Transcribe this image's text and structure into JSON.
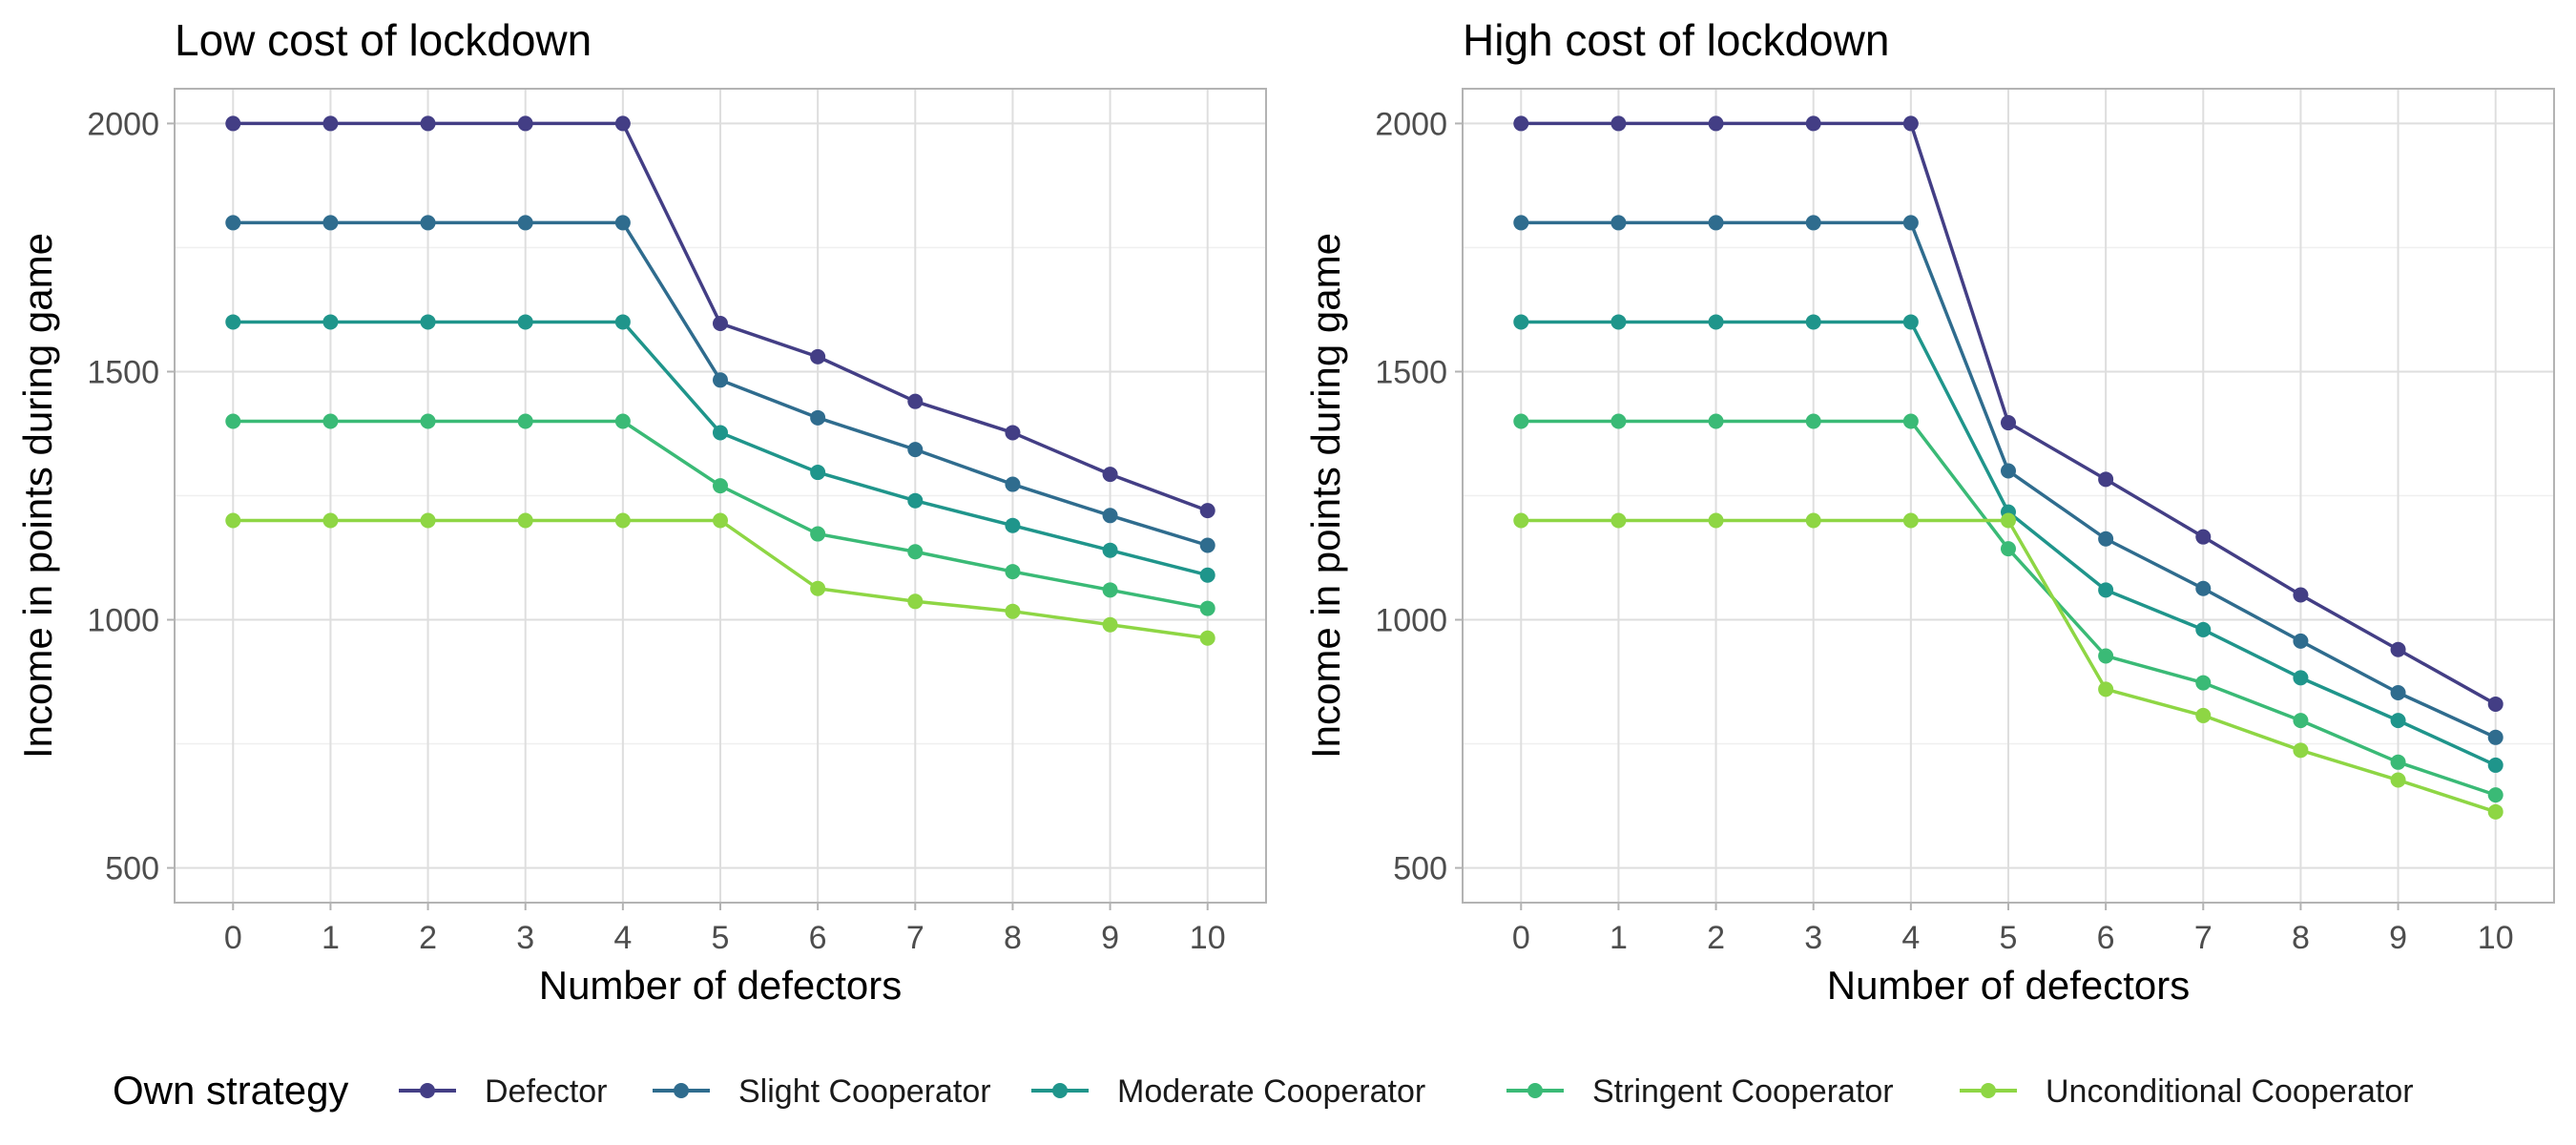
{
  "chart_data": [
    {
      "type": "line",
      "title": "Low cost of lockdown",
      "xlabel": "Number of defectors",
      "ylabel": "Income in points during game",
      "x": [
        0,
        1,
        2,
        3,
        4,
        5,
        6,
        7,
        8,
        9,
        10
      ],
      "xlim": [
        -0.6,
        10.6
      ],
      "ylim": [
        430,
        2070
      ],
      "x_ticks": [
        "0",
        "1",
        "2",
        "3",
        "4",
        "5",
        "6",
        "7",
        "8",
        "9",
        "10"
      ],
      "y_ticks": [
        "500",
        "1000",
        "1500",
        "2000"
      ],
      "grid": true,
      "legend_position": "bottom",
      "series": [
        {
          "name": "Defector",
          "color": "#433E85",
          "values": [
            2000,
            2000,
            2000,
            2000,
            2000,
            1597,
            1530,
            1440,
            1377,
            1293,
            1220
          ]
        },
        {
          "name": "Slight Cooperator",
          "color": "#2F6C8E",
          "values": [
            1800,
            1800,
            1800,
            1800,
            1800,
            1483,
            1407,
            1343,
            1273,
            1210,
            1150
          ]
        },
        {
          "name": "Moderate Cooperator",
          "color": "#1F958B",
          "values": [
            1600,
            1600,
            1600,
            1600,
            1600,
            1377,
            1297,
            1240,
            1190,
            1140,
            1090
          ]
        },
        {
          "name": "Stringent Cooperator",
          "color": "#3ABA76",
          "values": [
            1400,
            1400,
            1400,
            1400,
            1400,
            1270,
            1173,
            1137,
            1097,
            1060,
            1023
          ]
        },
        {
          "name": "Unconditional Cooperator",
          "color": "#8ED644",
          "values": [
            1200,
            1200,
            1200,
            1200,
            1200,
            1200,
            1063,
            1037,
            1017,
            990,
            963
          ]
        }
      ]
    },
    {
      "type": "line",
      "title": "High cost of lockdown",
      "xlabel": "Number of defectors",
      "ylabel": "Income in points during game",
      "x": [
        0,
        1,
        2,
        3,
        4,
        5,
        6,
        7,
        8,
        9,
        10
      ],
      "xlim": [
        -0.6,
        10.6
      ],
      "ylim": [
        430,
        2070
      ],
      "x_ticks": [
        "0",
        "1",
        "2",
        "3",
        "4",
        "5",
        "6",
        "7",
        "8",
        "9",
        "10"
      ],
      "y_ticks": [
        "500",
        "1000",
        "1500",
        "2000"
      ],
      "grid": true,
      "legend_position": "bottom",
      "series": [
        {
          "name": "Defector",
          "color": "#433E85",
          "values": [
            2000,
            2000,
            2000,
            2000,
            2000,
            1397,
            1283,
            1167,
            1050,
            940,
            830
          ]
        },
        {
          "name": "Slight Cooperator",
          "color": "#2F6C8E",
          "values": [
            1800,
            1800,
            1800,
            1800,
            1800,
            1300,
            1163,
            1063,
            957,
            853,
            763
          ]
        },
        {
          "name": "Moderate Cooperator",
          "color": "#1F958B",
          "values": [
            1600,
            1600,
            1600,
            1600,
            1600,
            1217,
            1060,
            980,
            883,
            797,
            707
          ]
        },
        {
          "name": "Stringent Cooperator",
          "color": "#3ABA76",
          "values": [
            1400,
            1400,
            1400,
            1400,
            1400,
            1143,
            927,
            873,
            797,
            713,
            647
          ]
        },
        {
          "name": "Unconditional Cooperator",
          "color": "#8ED644",
          "values": [
            1200,
            1200,
            1200,
            1200,
            1200,
            1200,
            860,
            807,
            737,
            677,
            613
          ]
        }
      ]
    }
  ],
  "legend": {
    "title": "Own strategy",
    "items": [
      {
        "label": "Defector",
        "color": "#433E85"
      },
      {
        "label": "Slight Cooperator",
        "color": "#2F6C8E"
      },
      {
        "label": "Moderate Cooperator",
        "color": "#1F958B"
      },
      {
        "label": "Stringent Cooperator",
        "color": "#3ABA76"
      },
      {
        "label": "Unconditional Cooperator",
        "color": "#8ED644"
      }
    ]
  }
}
